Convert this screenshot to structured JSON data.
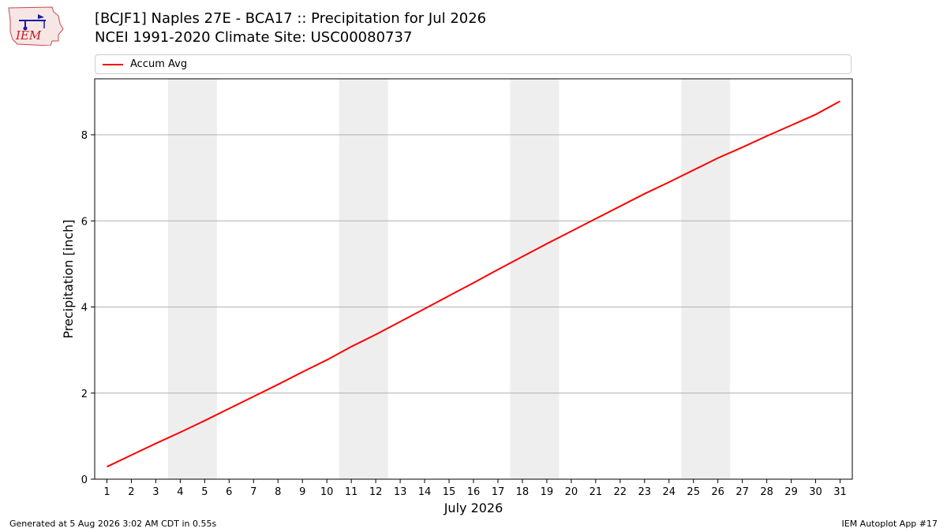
{
  "header": {
    "logo_text": "IEM",
    "title_line1": "[BCJF1] Naples 27E - BCA17 :: Precipitation for Jul 2026",
    "title_line2": "NCEI 1991-2020 Climate Site: USC00080737"
  },
  "footer": {
    "generated": "Generated at 5 Aug 2026 3:02 AM CDT in 0.55s",
    "app": "IEM Autoplot App #17"
  },
  "colors": {
    "series": "#ff0000",
    "weekend_band": "#eeeeee",
    "grid": "#b0b0b0"
  },
  "chart_data": {
    "type": "line",
    "xlabel": "July 2026",
    "ylabel": "Precipitation [inch]",
    "x": [
      1,
      2,
      3,
      4,
      5,
      6,
      7,
      8,
      9,
      10,
      11,
      12,
      13,
      14,
      15,
      16,
      17,
      18,
      19,
      20,
      21,
      22,
      23,
      24,
      25,
      26,
      27,
      28,
      29,
      30,
      31
    ],
    "xlim": [
      0.5,
      31.5
    ],
    "ylim": [
      0,
      9.3
    ],
    "yticks": [
      0,
      2,
      4,
      6,
      8
    ],
    "grid": "horizontal",
    "legend_position": "top",
    "weekend_bands": [
      [
        4,
        5
      ],
      [
        11,
        12
      ],
      [
        18,
        19
      ],
      [
        25,
        26
      ]
    ],
    "series": [
      {
        "name": "Accum Avg",
        "color": "#ff0000",
        "values": [
          0.29,
          0.56,
          0.83,
          1.09,
          1.36,
          1.64,
          1.92,
          2.2,
          2.49,
          2.77,
          3.08,
          3.36,
          3.66,
          3.96,
          4.26,
          4.56,
          4.87,
          5.17,
          5.47,
          5.76,
          6.05,
          6.34,
          6.63,
          6.9,
          7.18,
          7.46,
          7.71,
          7.97,
          8.22,
          8.47,
          8.78
        ]
      }
    ]
  }
}
